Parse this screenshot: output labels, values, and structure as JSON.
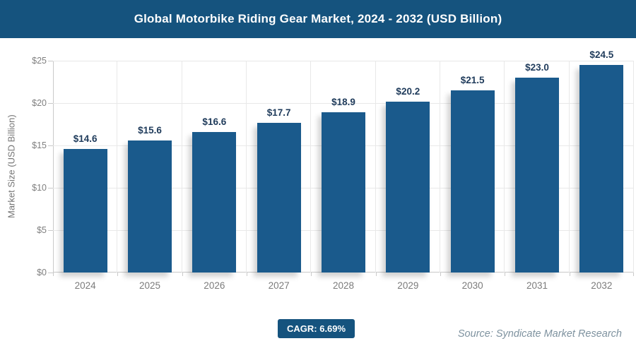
{
  "header": {
    "title": "Global Motorbike Riding Gear Market, 2024 - 2032 (USD Billion)"
  },
  "y_axis": {
    "title": "Market Size (USD Billion)"
  },
  "footer": {
    "cagr_label": "CAGR: 6.69%",
    "source": "Source: Syndicate Market Research"
  },
  "colors": {
    "header_bg": "#15537e",
    "badge_bg": "#15537e",
    "bar_color": "#1a5a8c",
    "value_label_color": "#1f3b5b",
    "grid_color": "#e8e8e8",
    "axis_color": "#c9c9c9",
    "source_color": "#7e929f"
  },
  "chart_data": {
    "type": "bar",
    "title": "Global Motorbike Riding Gear Market, 2024 - 2032 (USD Billion)",
    "categories": [
      "2024",
      "2025",
      "2026",
      "2027",
      "2028",
      "2029",
      "2030",
      "2031",
      "2032"
    ],
    "values": [
      14.6,
      15.6,
      16.6,
      17.7,
      18.9,
      20.2,
      21.5,
      23.0,
      24.5
    ],
    "labels": [
      "$14.6",
      "$15.6",
      "$16.6",
      "$17.7",
      "$18.9",
      "$20.2",
      "$21.5",
      "$23.0",
      "$24.5"
    ],
    "xlabel": "",
    "ylabel": "Market Size (USD Billion)",
    "ylim": [
      0,
      25
    ],
    "yticks": [
      0,
      5,
      10,
      15,
      20,
      25
    ],
    "ytick_labels": [
      "$0",
      "$5",
      "$10",
      "$15",
      "$20",
      "$25"
    ],
    "grid": true,
    "legend": false,
    "annotations": [
      "CAGR: 6.69%",
      "Source: Syndicate Market Research"
    ]
  }
}
